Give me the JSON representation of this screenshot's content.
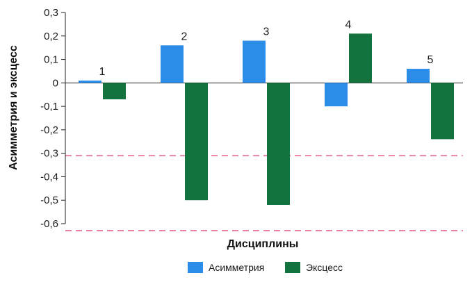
{
  "chart_data": {
    "type": "bar",
    "xlabel": "Дисциплины",
    "ylabel": "Асимметрия и эксцесс",
    "categories": [
      "1",
      "2",
      "3",
      "4",
      "5"
    ],
    "series": [
      {
        "name": "Асимметрия",
        "color": "#2b8de8",
        "values": [
          0.01,
          0.16,
          0.18,
          -0.1,
          0.06
        ]
      },
      {
        "name": "Эксцесс",
        "color": "#13733f",
        "values": [
          -0.07,
          -0.5,
          -0.52,
          0.21,
          -0.24
        ]
      }
    ],
    "ylim": [
      -0.6,
      0.3
    ],
    "yticks": [
      0.3,
      0.2,
      0.1,
      0,
      -0.1,
      -0.2,
      -0.3,
      -0.4,
      -0.5,
      -0.6
    ],
    "ytick_labels": [
      "0,3",
      "0,2",
      "0,1",
      "0",
      "-0,1",
      "-0,2",
      "-0,3",
      "-0,4",
      "-0,5",
      "-0,6"
    ],
    "reference_lines": [
      {
        "y": -0.31,
        "color": "#e0527a",
        "style": "dashed"
      },
      {
        "y": -0.63,
        "color": "#e0527a",
        "style": "dashed"
      }
    ],
    "grid": false,
    "legend_position": "bottom"
  }
}
